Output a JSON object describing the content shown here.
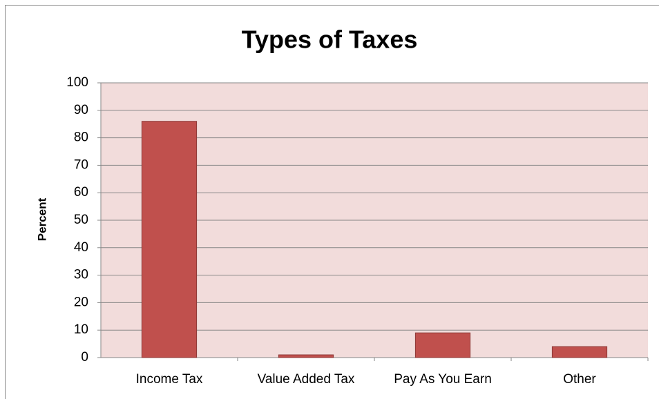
{
  "chart_data": {
    "type": "bar",
    "title": "Types of Taxes",
    "y_label": "Percent",
    "categories": [
      "Income Tax",
      "Value Added Tax",
      "Pay As You Earn",
      "Other"
    ],
    "values": [
      86,
      1,
      9,
      4
    ],
    "color": "#c0504d",
    "ylim": [
      0,
      100
    ],
    "yticks": [
      0,
      10,
      20,
      30,
      40,
      50,
      60,
      70,
      80,
      90,
      100
    ],
    "grid": true
  }
}
